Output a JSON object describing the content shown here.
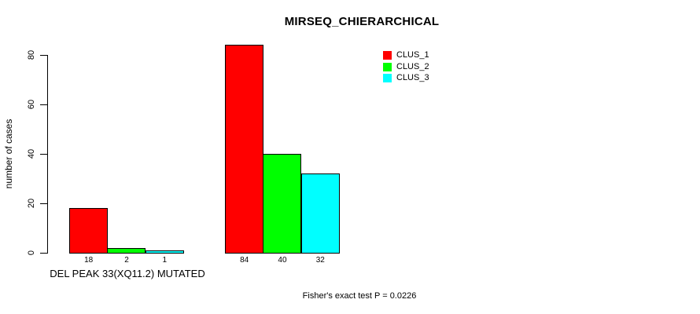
{
  "chart_data": {
    "type": "bar",
    "title": "MIRSEQ_CHIERARCHICAL",
    "ylabel": "number of cases",
    "xlabel": "DEL PEAK 33(XQ11.2) MUTATED",
    "y_ticks": [
      0,
      20,
      40,
      60,
      80
    ],
    "ylim": [
      0,
      84
    ],
    "grid": false,
    "legend_position": "top-right",
    "categories": [
      "DEL PEAK 33(XQ11.2) MUTATED",
      ""
    ],
    "series": [
      {
        "name": "CLUS_1",
        "color": "#ff0000",
        "values": [
          18,
          84
        ]
      },
      {
        "name": "CLUS_2",
        "color": "#00ff00",
        "values": [
          2,
          40
        ]
      },
      {
        "name": "CLUS_3",
        "color": "#00ffff",
        "values": [
          1,
          32
        ]
      }
    ],
    "bar_value_labels": [
      [
        18,
        2,
        1
      ],
      [
        84,
        40,
        32
      ]
    ],
    "annotation": "Fisher's exact test P = 0.0226",
    "colors": {
      "background": "#ffffff",
      "axis": "#000000",
      "text": "#000000"
    }
  }
}
